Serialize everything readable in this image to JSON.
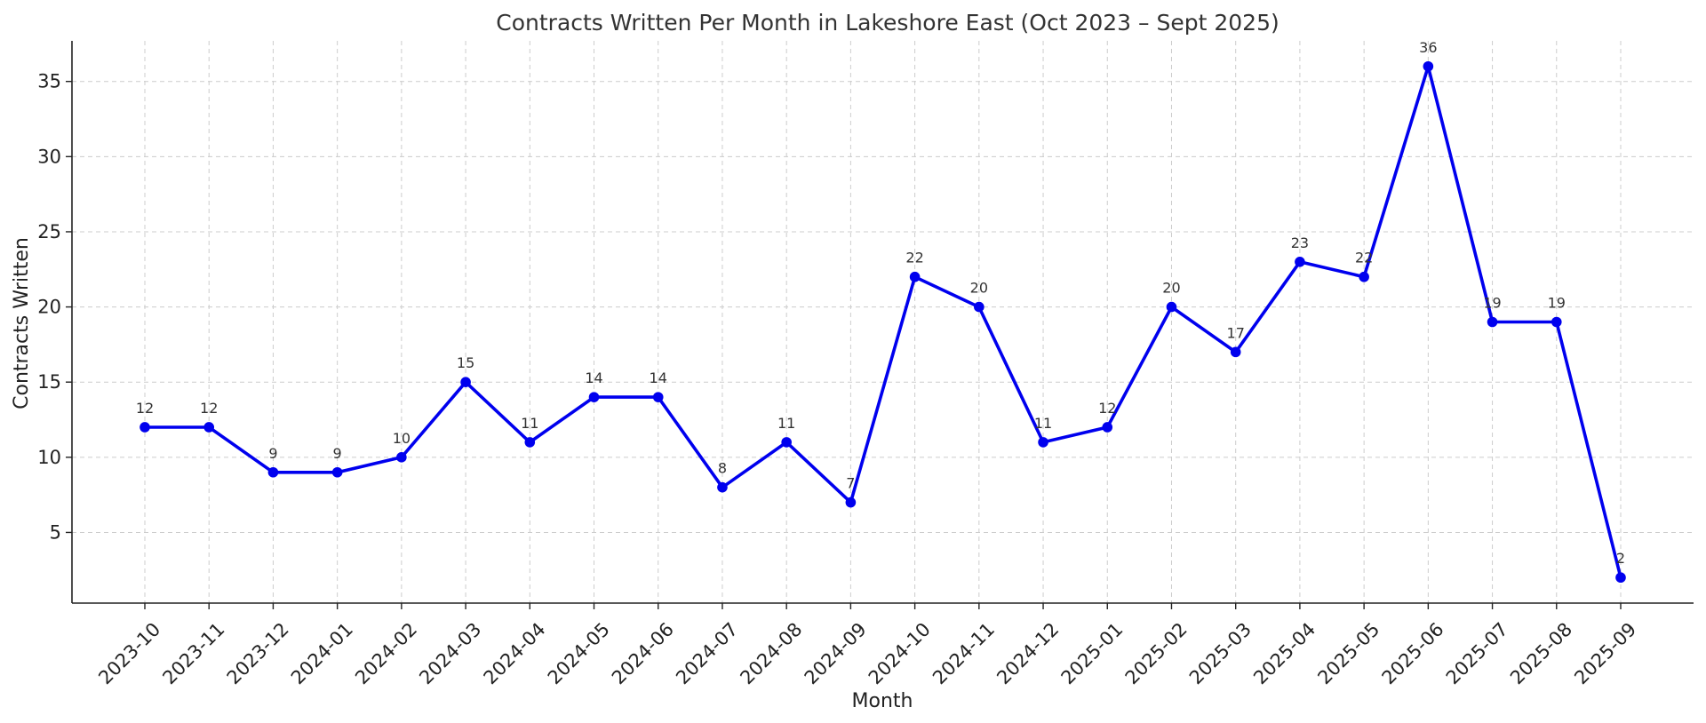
{
  "chart_data": {
    "type": "line",
    "title": "Contracts Written Per Month in Lakeshore East (Oct 2023 – Sept 2025)",
    "xlabel": "Month",
    "ylabel": "Contracts Written",
    "categories": [
      "2023-10",
      "2023-11",
      "2023-12",
      "2024-01",
      "2024-02",
      "2024-03",
      "2024-04",
      "2024-05",
      "2024-06",
      "2024-07",
      "2024-08",
      "2024-09",
      "2024-10",
      "2024-11",
      "2024-12",
      "2025-01",
      "2025-02",
      "2025-03",
      "2025-04",
      "2025-05",
      "2025-06",
      "2025-07",
      "2025-08",
      "2025-09"
    ],
    "values": [
      12,
      12,
      9,
      9,
      10,
      15,
      11,
      14,
      14,
      8,
      11,
      7,
      22,
      20,
      11,
      12,
      20,
      17,
      23,
      22,
      36,
      19,
      19,
      2
    ],
    "yticks": [
      5,
      10,
      15,
      20,
      25,
      30,
      35
    ],
    "ylim": [
      0.3,
      37.7
    ],
    "grid": true,
    "line_color": "#0000ee",
    "data_labels": true
  }
}
